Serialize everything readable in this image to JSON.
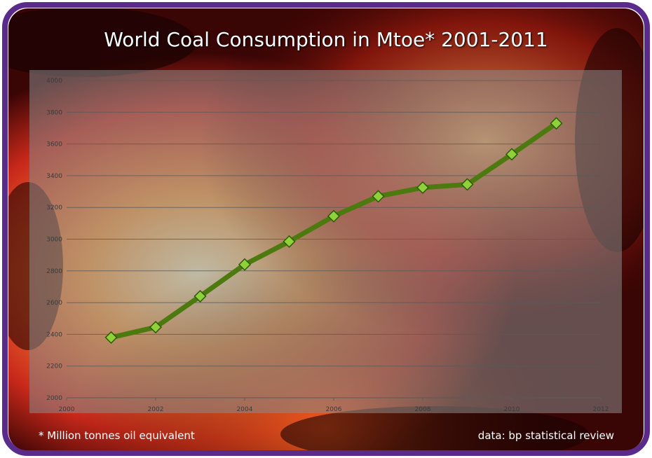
{
  "chart_data": {
    "type": "line",
    "title": "World Coal Consumption in Mtoe* 2001-2011",
    "footnote": "* Million tonnes oil equivalent",
    "source": "data: bp statistical review",
    "x": [
      2001,
      2002,
      2003,
      2004,
      2005,
      2006,
      2007,
      2008,
      2009,
      2010,
      2011
    ],
    "series": [
      {
        "color": "#4d7a0e",
        "marker_color": "#8fd13a",
        "values": [
          2380,
          2445,
          2640,
          2840,
          2985,
          3145,
          3270,
          3325,
          3345,
          3535,
          3730
        ]
      }
    ],
    "xlim": [
      2000,
      2012
    ],
    "xticks": [
      2000,
      2002,
      2004,
      2006,
      2008,
      2010,
      2012
    ],
    "ylim": [
      2000,
      4000
    ],
    "yticks": [
      2000,
      2200,
      2400,
      2600,
      2800,
      3000,
      3200,
      3400,
      3600,
      3800,
      4000
    ],
    "grid": true
  }
}
